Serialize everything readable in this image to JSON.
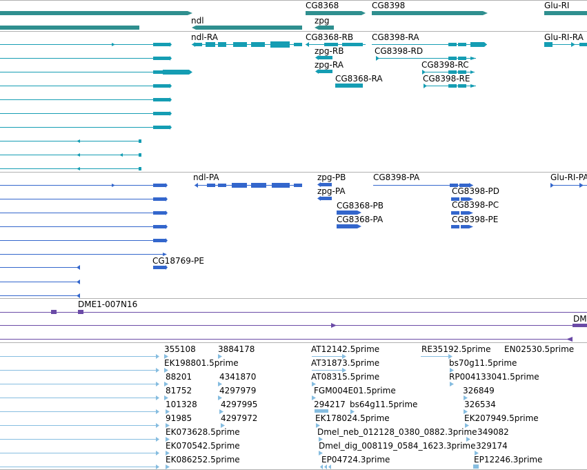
{
  "colors": {
    "gene": "#2f8f8f",
    "transcript": "#159db3",
    "protein": "#3366cc",
    "clone": "#6a4aa6",
    "est": "#86bde0",
    "divider": "#b0b0b0"
  },
  "genes": [
    {
      "id": "ndl",
      "label": "ndl"
    },
    {
      "id": "CG8368",
      "label": "CG8368"
    },
    {
      "id": "zpg",
      "label": "zpg"
    },
    {
      "id": "CG8398",
      "label": "CG8398"
    },
    {
      "id": "Glu-RI",
      "label": "Glu-RI"
    }
  ],
  "transcripts": [
    {
      "id": "ndl-RA",
      "label": "ndl-RA"
    },
    {
      "id": "CG8368-RB",
      "label": "CG8368-RB"
    },
    {
      "id": "zpg-RB",
      "label": "zpg-RB"
    },
    {
      "id": "zpg-RA",
      "label": "zpg-RA"
    },
    {
      "id": "CG8368-RA",
      "label": "CG8368-RA"
    },
    {
      "id": "CG8398-RA",
      "label": "CG8398-RA"
    },
    {
      "id": "CG8398-RD",
      "label": "CG8398-RD"
    },
    {
      "id": "CG8398-RC",
      "label": "CG8398-RC"
    },
    {
      "id": "CG8398-RE",
      "label": "CG8398-RE"
    },
    {
      "id": "Glu-RI-RA",
      "label": "Glu-RI-RA"
    }
  ],
  "proteins": [
    {
      "id": "ndl-PA",
      "label": "ndl-PA"
    },
    {
      "id": "zpg-PB",
      "label": "zpg-PB"
    },
    {
      "id": "zpg-PA",
      "label": "zpg-PA"
    },
    {
      "id": "CG8368-PB",
      "label": "CG8368-PB"
    },
    {
      "id": "CG8368-PA",
      "label": "CG8368-PA"
    },
    {
      "id": "CG8398-PA",
      "label": "CG8398-PA"
    },
    {
      "id": "CG8398-PD",
      "label": "CG8398-PD"
    },
    {
      "id": "CG8398-PC",
      "label": "CG8398-PC"
    },
    {
      "id": "CG8398-PE",
      "label": "CG8398-PE"
    },
    {
      "id": "Glu-RI-PA",
      "label": "Glu-RI-PA"
    },
    {
      "id": "CG18769-PE",
      "label": "CG18769-PE"
    }
  ],
  "clones": [
    {
      "id": "DME1-007N16",
      "label": "DME1-007N16"
    },
    {
      "id": "DM",
      "label": "DM"
    }
  ],
  "ests": [
    "355108",
    "3884178",
    "AT12142.5prime",
    "RE35192.5prime",
    "EN02530.5prime",
    "EK198801.5prime",
    "AT31873.5prime",
    "bs70g11.5prime",
    "88201",
    "4341870",
    "AT08315.5prime",
    "RP004133041.5prime",
    "81752",
    "4297979",
    "FGM004E01.5prime",
    "326849",
    "101328",
    "4297995",
    "294217",
    "bs64g11.5prime",
    "326534",
    "91985",
    "4297972",
    "EK178024.5prime",
    "EK207949.5prime",
    "EK073628.5prime",
    "Dmel_neb_012128_0380_0882.3prime",
    "349082",
    "EK070542.5prime",
    "Dmel_dig_008119_0584_1623.3prime",
    "329174",
    "EK086252.5prime",
    "EP04724.3prime",
    "EP12246.3prime"
  ]
}
